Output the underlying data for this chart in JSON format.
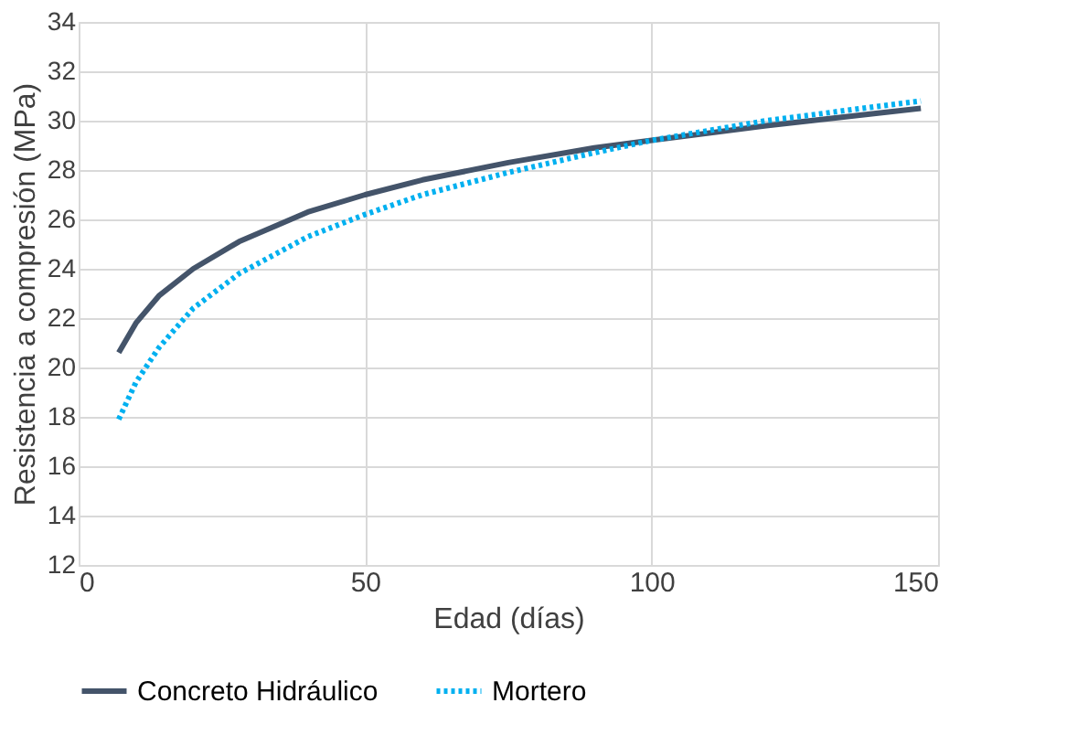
{
  "chart_data": {
    "type": "line",
    "xlabel": "Edad (días)",
    "ylabel": "Resistencia a compresión (MPa)",
    "xlim": [
      0,
      150
    ],
    "xticks": [
      0,
      50,
      100,
      150
    ],
    "ylim": [
      12,
      34
    ],
    "yticks": [
      12,
      14,
      16,
      18,
      20,
      22,
      24,
      26,
      28,
      30,
      32,
      34
    ],
    "grid": true,
    "legend": "bottom",
    "marker": "none",
    "x": [
      7,
      10,
      14,
      20,
      28,
      40,
      50,
      60,
      75,
      90,
      100,
      120,
      147
    ],
    "series": [
      {
        "name": "Concreto Hidráulico",
        "color": "#44546a",
        "line_style": "solid",
        "values": [
          20.6,
          21.8,
          22.9,
          24.0,
          25.1,
          26.3,
          27.0,
          27.6,
          28.3,
          28.9,
          29.2,
          29.8,
          30.5
        ]
      },
      {
        "name": "Mortero",
        "color": "#00b0f0",
        "line_style": "dotted",
        "values": [
          17.9,
          19.4,
          20.8,
          22.4,
          23.8,
          25.3,
          26.2,
          27.0,
          27.9,
          28.7,
          29.2,
          30.0,
          30.8
        ]
      }
    ]
  }
}
